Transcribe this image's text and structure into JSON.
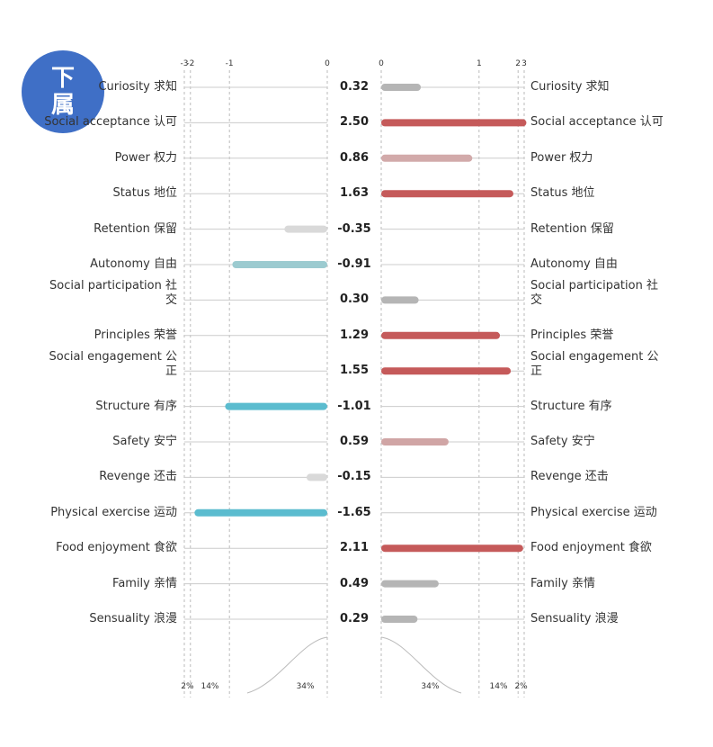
{
  "badge": "下属",
  "chart_data": {
    "type": "diverging-bar",
    "categories": [
      "Curiosity 求知",
      "Social acceptance 认可",
      "Power 权力",
      "Status 地位",
      "Retention 保留",
      "Autonomy 自由",
      "Social participation 社交",
      "Principles 荣誉",
      "Social engagement 公正",
      "Structure 有序",
      "Safety 安宁",
      "Revenge 还击",
      "Physical exercise 运动",
      "Food enjoyment 食欲",
      "Family 亲情",
      "Sensuality 浪漫"
    ],
    "values": [
      0.32,
      2.5,
      0.86,
      1.63,
      -0.35,
      -0.91,
      0.3,
      1.29,
      1.55,
      -1.01,
      0.59,
      -0.15,
      -1.65,
      2.11,
      0.49,
      0.29
    ],
    "value_labels": [
      "0.32",
      "2.50",
      "0.86",
      "1.63",
      "-0.35",
      "-0.91",
      "0.30",
      "1.29",
      "1.55",
      "-1.01",
      "0.59",
      "-0.15",
      "-1.65",
      "2.11",
      "0.49",
      "0.29"
    ],
    "colors": [
      "#b5b5b5",
      "#c55a5a",
      "#d2aaaa",
      "#c55a5a",
      "#d9d9d9",
      "#9ccbd0",
      "#b5b5b5",
      "#c55a5a",
      "#c55a5a",
      "#5bbccf",
      "#d0a5a5",
      "#d9d9d9",
      "#5bbccf",
      "#c55a5a",
      "#b5b5b5",
      "#b5b5b5"
    ],
    "xlim": [
      -3,
      3
    ],
    "xticks": [
      -3,
      -2,
      -1,
      0,
      1,
      2,
      3
    ],
    "bands": [
      {
        "value": 34,
        "label": "34%"
      },
      {
        "value": 14,
        "label": "14%"
      },
      {
        "value": 2,
        "label": "2%"
      }
    ]
  }
}
